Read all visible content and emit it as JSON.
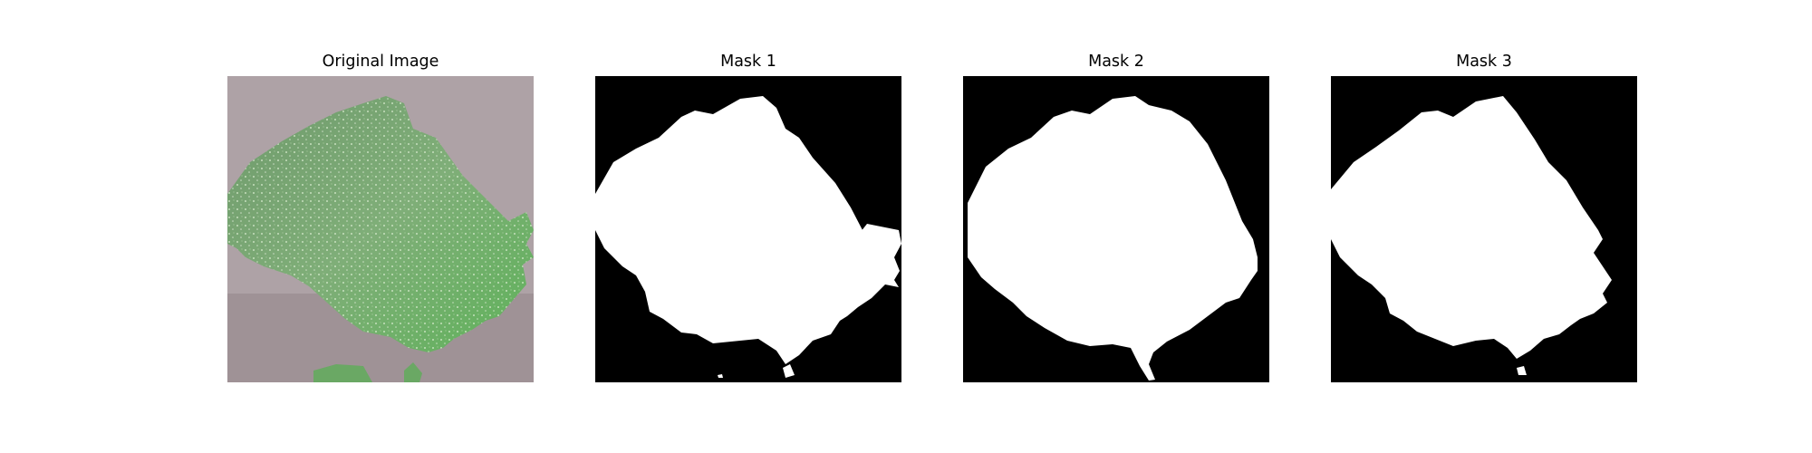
{
  "panels": [
    {
      "title": "Original Image"
    },
    {
      "title": "Mask 1"
    },
    {
      "title": "Mask 2"
    },
    {
      "title": "Mask 3"
    }
  ]
}
